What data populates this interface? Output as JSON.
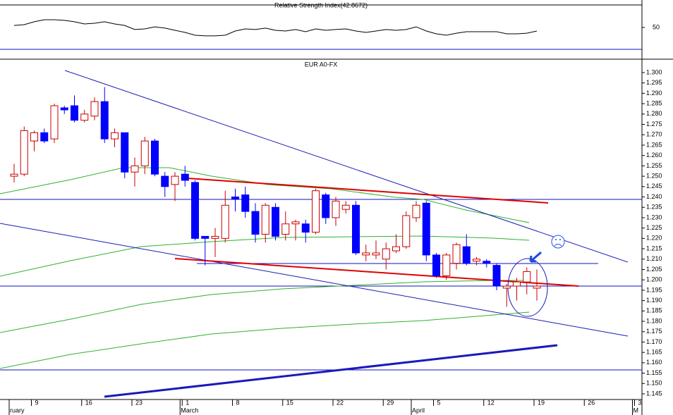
{
  "chart_data": [
    {
      "type": "line",
      "title": "Relative Strength Index(42.8672)",
      "color": "#000000",
      "ylim": [
        30,
        70
      ],
      "yticks": [
        50
      ],
      "values": [
        51.9,
        52.6,
        55.2,
        57.1,
        57.1,
        56.5,
        55.2,
        53.2,
        53.9,
        55.2,
        53.2,
        51.9,
        48.1,
        48.7,
        50.6,
        49.4,
        47.4,
        45.5,
        42.9,
        42.3,
        42.3,
        42.9,
        46.8,
        48.7,
        48.1,
        49.4,
        47.4,
        46.8,
        48.1,
        46.1,
        48.7,
        47.4,
        48.1,
        48.7,
        46.8,
        45.5,
        46.8,
        48.1,
        47.4,
        48.1,
        50.6,
        46.8,
        44.2,
        42.9,
        44.8,
        46.1,
        46.1,
        46.1,
        46.1,
        44.2,
        44.2,
        44.8,
        46.8,
        null,
        null,
        null,
        null,
        null,
        null,
        null,
        null,
        null,
        null
      ]
    },
    {
      "type": "candlestick",
      "title": "EUR A0-FX",
      "up_color": "#cc0000",
      "down_color": "#0000ff",
      "ylim": [
        1.142,
        1.305
      ],
      "yticks": [
        {
          "value": 1.3,
          "label": "1.300"
        },
        1.295,
        {
          "value": 1.29,
          "label": "1.290"
        },
        1.285,
        {
          "value": 1.28,
          "label": "1.280"
        },
        1.275,
        {
          "value": 1.27,
          "label": "1.270"
        },
        1.265,
        {
          "value": 1.26,
          "label": "1.260"
        },
        1.255,
        {
          "value": 1.25,
          "label": "1.250"
        },
        1.245,
        {
          "value": 1.24,
          "label": "1.240"
        },
        1.235,
        {
          "value": 1.23,
          "label": "1.230"
        },
        1.225,
        {
          "value": 1.22,
          "label": "1.220"
        },
        1.215,
        {
          "value": 1.21,
          "label": "1.210"
        },
        1.205,
        {
          "value": 1.2,
          "label": "1.200"
        },
        1.195,
        {
          "value": 1.19,
          "label": "1.190"
        },
        1.185,
        {
          "value": 1.18,
          "label": "1.180"
        },
        1.175,
        {
          "value": 1.17,
          "label": "1.170"
        },
        1.165,
        {
          "value": 1.16,
          "label": "1.160"
        },
        1.155,
        {
          "value": 1.15,
          "label": "1.150"
        },
        1.145
      ],
      "categories": [
        null,
        null,
        "9",
        null,
        null,
        null,
        null,
        "16",
        null,
        null,
        null,
        null,
        "23",
        null,
        null,
        null,
        null,
        "1",
        null,
        null,
        null,
        null,
        "8",
        null,
        null,
        null,
        null,
        "15",
        null,
        null,
        null,
        null,
        "22",
        null,
        null,
        null,
        null,
        "29",
        null,
        null,
        null,
        null,
        "5",
        null,
        null,
        null,
        null,
        "12",
        null,
        null,
        null,
        null,
        "19",
        null,
        null,
        null,
        null,
        "26",
        null,
        null,
        null,
        null,
        "3"
      ],
      "months": [
        "ruary",
        null,
        null,
        null,
        null,
        null,
        null,
        null,
        null,
        null,
        null,
        null,
        null,
        null,
        null,
        null,
        null,
        "March",
        null,
        null,
        null,
        null,
        null,
        null,
        null,
        null,
        null,
        null,
        null,
        null,
        null,
        null,
        null,
        null,
        null,
        null,
        null,
        null,
        null,
        null,
        "April",
        null,
        null,
        null,
        null,
        null,
        null,
        null,
        null,
        null,
        null,
        null,
        null,
        null,
        null,
        null,
        null,
        null,
        null,
        null,
        null,
        null,
        "M"
      ],
      "open": [
        1.25,
        1.251,
        1.267,
        1.271,
        1.268,
        1.283,
        1.284,
        1.277,
        1.279,
        1.286,
        1.268,
        1.271,
        1.252,
        1.255,
        1.267,
        1.25,
        1.246,
        1.251,
        1.247,
        1.221,
        1.22,
        1.22,
        1.24,
        1.241,
        1.233,
        1.222,
        1.235,
        1.222,
        1.227,
        1.227,
        1.223,
        1.241,
        1.23,
        1.234,
        1.236,
        1.212,
        1.212,
        1.21,
        1.214,
        1.216,
        1.23,
        1.237,
        1.212,
        1.202,
        1.208,
        1.216,
        1.209,
        1.209,
        1.207,
        1.196,
        1.197,
        1.199,
        1.196,
        null,
        null,
        null,
        null,
        null,
        null,
        null,
        null,
        null,
        null
      ],
      "high": [
        1.256,
        1.274,
        1.272,
        1.273,
        1.285,
        1.284,
        1.289,
        1.282,
        1.288,
        1.293,
        1.273,
        1.271,
        1.259,
        1.269,
        1.268,
        1.252,
        1.252,
        1.255,
        1.248,
        1.221,
        1.225,
        1.243,
        1.244,
        1.245,
        1.237,
        1.237,
        1.237,
        1.233,
        1.229,
        1.229,
        1.244,
        1.242,
        1.24,
        1.238,
        1.238,
        1.217,
        1.219,
        1.218,
        1.222,
        1.233,
        1.238,
        1.238,
        1.213,
        1.213,
        1.218,
        1.222,
        1.211,
        1.21,
        1.208,
        1.198,
        1.201,
        1.206,
        1.205,
        null,
        null,
        null,
        null,
        null,
        null,
        null,
        null,
        null,
        null
      ],
      "low": [
        1.247,
        1.25,
        1.262,
        1.266,
        1.266,
        1.28,
        1.276,
        1.276,
        1.277,
        1.266,
        1.264,
        1.249,
        1.245,
        1.251,
        1.25,
        1.24,
        1.238,
        1.245,
        1.219,
        1.207,
        1.211,
        1.218,
        1.233,
        1.23,
        1.218,
        1.218,
        1.219,
        1.219,
        1.219,
        1.218,
        1.222,
        1.227,
        1.226,
        1.232,
        1.212,
        1.209,
        1.21,
        1.205,
        1.213,
        1.215,
        1.228,
        1.209,
        1.201,
        1.2,
        1.205,
        1.207,
        1.207,
        1.206,
        1.195,
        1.187,
        1.19,
        1.193,
        1.19,
        null,
        null,
        null,
        null,
        null,
        null,
        null,
        null,
        null,
        null
      ],
      "close": [
        1.251,
        1.272,
        1.271,
        1.267,
        1.284,
        1.282,
        1.277,
        1.28,
        1.286,
        1.268,
        1.271,
        1.252,
        1.255,
        1.267,
        1.251,
        1.245,
        1.25,
        1.248,
        1.22,
        1.22,
        1.221,
        1.236,
        1.239,
        1.233,
        1.222,
        1.236,
        1.221,
        1.227,
        1.228,
        1.223,
        1.243,
        1.23,
        1.238,
        1.236,
        1.213,
        1.213,
        1.213,
        1.215,
        1.216,
        1.231,
        1.236,
        1.212,
        1.202,
        1.212,
        1.217,
        1.208,
        1.21,
        1.208,
        1.197,
        1.197,
        1.199,
        1.204,
        1.197,
        null,
        null,
        null,
        null,
        null,
        null,
        null,
        null,
        null,
        null
      ]
    }
  ]
}
